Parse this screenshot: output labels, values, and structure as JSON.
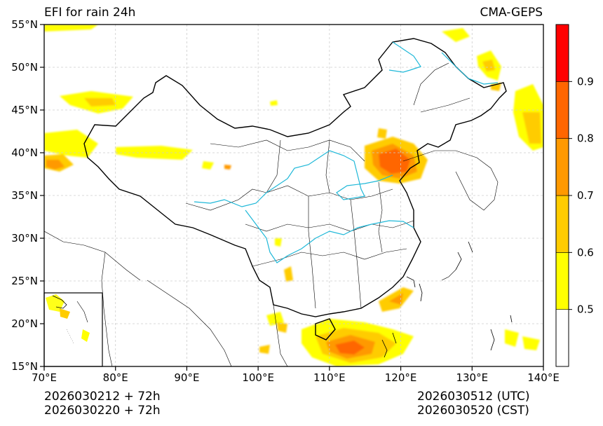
{
  "title_left": "EFI for rain 24h",
  "title_right": "CMA-GEPS",
  "map": {
    "lon_labels": [
      "70°E",
      "80°E",
      "90°E",
      "100°E",
      "110°E",
      "120°E",
      "130°E",
      "140°E"
    ],
    "lat_labels": [
      "15°N",
      "20°N",
      "25°N",
      "30°N",
      "35°N",
      "40°N",
      "45°N",
      "50°N",
      "55°N"
    ],
    "colors": {
      "border": "#000000",
      "river": "#1fb8d8",
      "grid": "#cccccc",
      "efi_05": "#ffff00",
      "efi_06": "#ffcc00",
      "efi_07": "#ff9900",
      "efi_08": "#ff6600",
      "efi_09": "#ff0000"
    }
  },
  "colorbar": {
    "levels": [
      {
        "from": 0.4,
        "to": 0.5,
        "color": "#ffffff"
      },
      {
        "from": 0.5,
        "to": 0.6,
        "color": "#ffff00"
      },
      {
        "from": 0.6,
        "to": 0.7,
        "color": "#ffcc00"
      },
      {
        "from": 0.7,
        "to": 0.8,
        "color": "#ff9900"
      },
      {
        "from": 0.8,
        "to": 0.9,
        "color": "#ff6600"
      },
      {
        "from": 0.9,
        "to": 1.0,
        "color": "#ff0000"
      }
    ],
    "tick_labels": [
      "0.5",
      "0.6",
      "0.7",
      "0.8",
      "0.9"
    ]
  },
  "footer": {
    "init_utc": "2026030212 + 72h",
    "init_cst": "2026030220 + 72h",
    "valid_utc": "2026030512 (UTC)",
    "valid_cst": "2026030520 (CST)"
  }
}
